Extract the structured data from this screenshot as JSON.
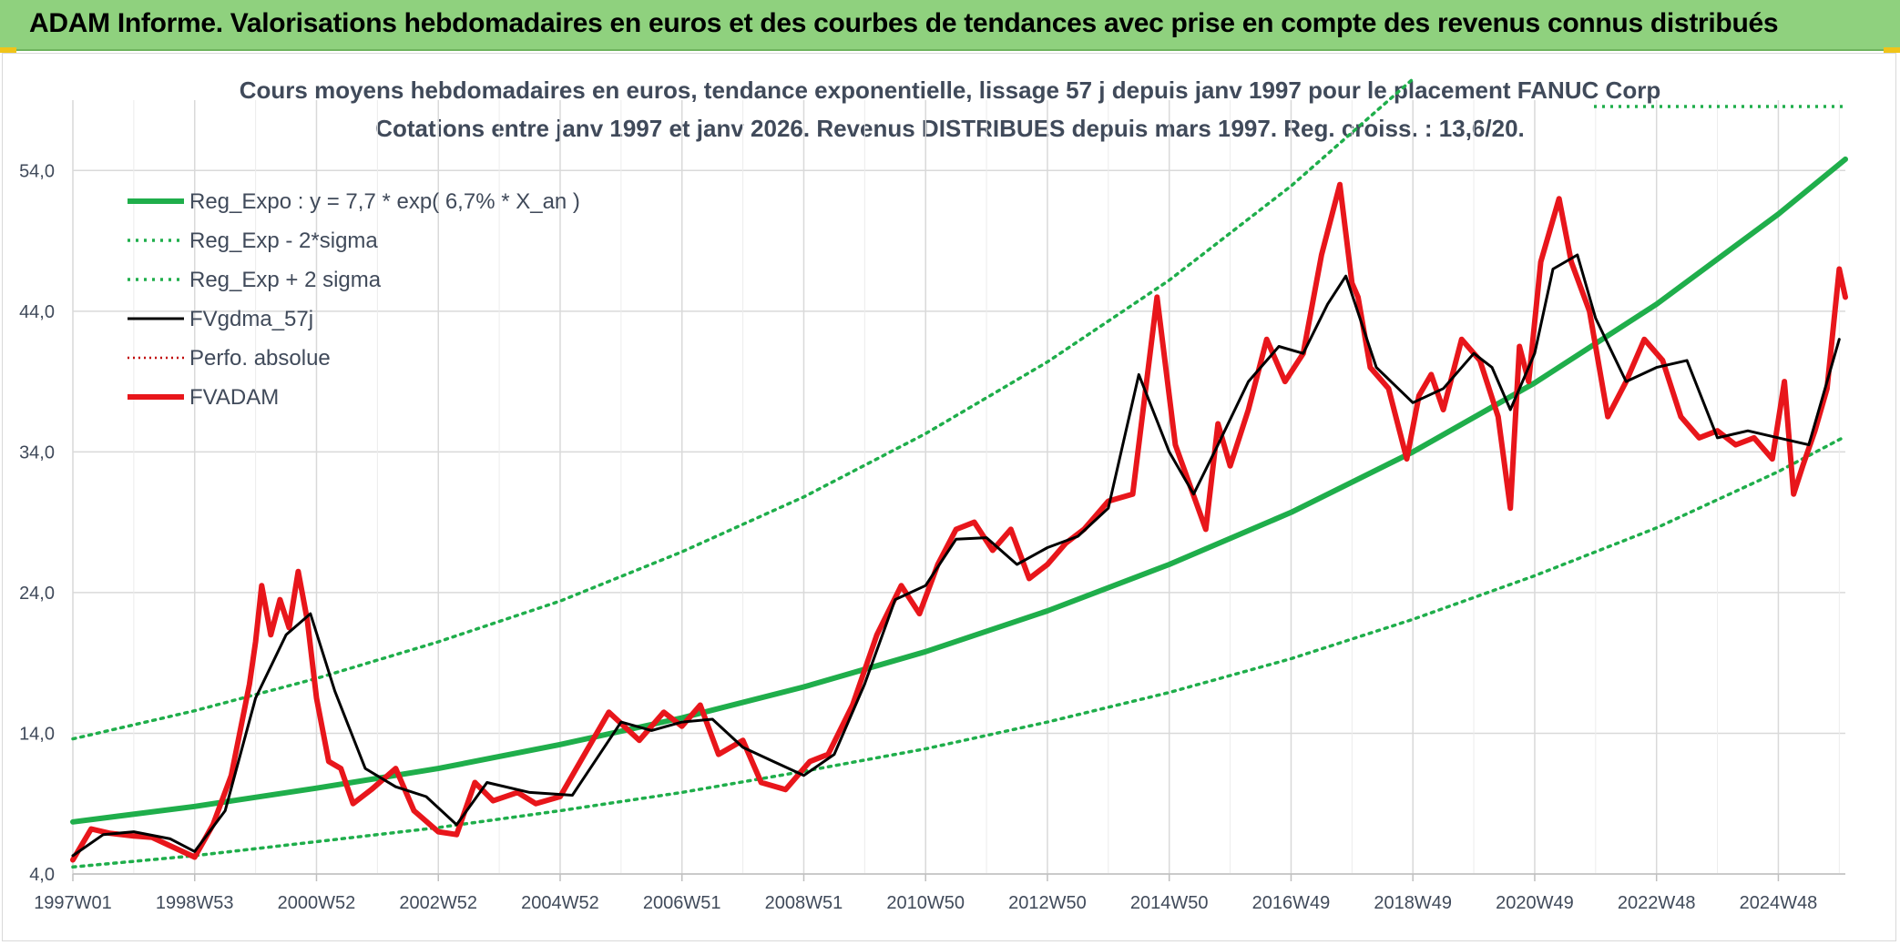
{
  "banner": {
    "title": "ADAM Informe. Valorisations hebdomadaires en euros et des courbes de tendances avec prise en compte des revenus connus distribués"
  },
  "colors": {
    "banner_bg": "#8fd17e",
    "reg_expo": "#1fae4b",
    "fvgdma": "#000000",
    "fvadam": "#e8161b",
    "perfo": "#c00000",
    "grid": "#d9d9d9"
  },
  "chart_data": {
    "type": "line",
    "title": "Cours moyens hebdomadaires en euros, tendance exponentielle, lissage 57 j depuis janv 1997 pour le placement FANUC Corp",
    "subtitle": "Cotations entre janv 1997 et janv 2026. Revenus DISTRIBUES depuis mars 1997. Reg. croiss. : 13,6/20.",
    "xlabel": "",
    "ylabel": "",
    "ylim": [
      4.0,
      59.0
    ],
    "yticks": [
      "4,0",
      "14,0",
      "24,0",
      "34,0",
      "44,0",
      "54,0"
    ],
    "xlim": [
      1997.0,
      2026.1
    ],
    "xticks": [
      {
        "label": "1997W01",
        "x": 1997.0
      },
      {
        "label": "1998W53",
        "x": 1999.0
      },
      {
        "label": "2000W52",
        "x": 2001.0
      },
      {
        "label": "2002W52",
        "x": 2003.0
      },
      {
        "label": "2004W52",
        "x": 2005.0
      },
      {
        "label": "2006W51",
        "x": 2007.0
      },
      {
        "label": "2008W51",
        "x": 2009.0
      },
      {
        "label": "2010W50",
        "x": 2011.0
      },
      {
        "label": "2012W50",
        "x": 2013.0
      },
      {
        "label": "2014W50",
        "x": 2015.0
      },
      {
        "label": "2016W49",
        "x": 2017.0
      },
      {
        "label": "2018W49",
        "x": 2019.0
      },
      {
        "label": "2020W49",
        "x": 2021.0
      },
      {
        "label": "2022W48",
        "x": 2023.0
      },
      {
        "label": "2024W48",
        "x": 2025.0
      }
    ],
    "grid": true,
    "legend_position": "top-left",
    "series": [
      {
        "name": "Reg_Expo : y = 7,7 * exp( 6,7% *  X_an )",
        "style": "solid-thick",
        "color": "#1fae4b",
        "x": [
          1997,
          1999,
          2001,
          2003,
          2005,
          2007,
          2009,
          2011,
          2013,
          2015,
          2017,
          2019,
          2021,
          2023,
          2025,
          2026.1
        ],
        "y": [
          7.7,
          8.8,
          10.1,
          11.5,
          13.2,
          15.1,
          17.3,
          19.8,
          22.7,
          26.0,
          29.7,
          34.0,
          38.9,
          44.5,
          50.9,
          54.8
        ]
      },
      {
        "name": "Reg_Exp - 2*sigma",
        "style": "dotted",
        "color": "#1fae4b",
        "x": [
          1997,
          1999,
          2001,
          2003,
          2005,
          2007,
          2009,
          2011,
          2013,
          2015,
          2017,
          2019,
          2021,
          2023,
          2025,
          2026.1
        ],
        "y": [
          4.5,
          5.3,
          6.3,
          7.3,
          8.5,
          9.8,
          11.3,
          12.9,
          14.8,
          16.9,
          19.3,
          22.1,
          25.2,
          28.6,
          32.6,
          35.1
        ]
      },
      {
        "name": "Reg_Exp + 2 sigma",
        "style": "dotted",
        "color": "#1fae4b",
        "x": [
          1997,
          1999,
          2001,
          2003,
          2005,
          2007,
          2009,
          2011,
          2013,
          2015,
          2017,
          2019
        ],
        "y": [
          13.6,
          15.6,
          17.9,
          20.5,
          23.4,
          26.9,
          30.8,
          35.3,
          40.4,
          46.2,
          52.9,
          60.5
        ]
      },
      {
        "name": "FVgdma_57j",
        "style": "solid",
        "color": "#000000",
        "x": [
          1997.0,
          1997.5,
          1998.0,
          1998.6,
          1999.0,
          1999.5,
          2000.0,
          2000.5,
          2000.9,
          2001.3,
          2001.8,
          2002.3,
          2002.8,
          2003.3,
          2003.8,
          2004.5,
          2005.2,
          2006.0,
          2006.5,
          2007.0,
          2007.5,
          2008.0,
          2008.5,
          2009.0,
          2009.5,
          2010.0,
          2010.5,
          2011.0,
          2011.5,
          2012.0,
          2012.5,
          2013.0,
          2013.5,
          2014.0,
          2014.5,
          2015.0,
          2015.4,
          2015.8,
          2016.3,
          2016.8,
          2017.2,
          2017.6,
          2017.9,
          2018.4,
          2019.0,
          2019.5,
          2020.0,
          2020.3,
          2020.6,
          2021.0,
          2021.3,
          2021.7,
          2022.0,
          2022.5,
          2023.0,
          2023.5,
          2024.0,
          2024.5,
          2025.0,
          2025.5,
          2026.0
        ],
        "y": [
          5.3,
          6.8,
          7.0,
          6.5,
          5.6,
          8.5,
          16.5,
          21.0,
          22.5,
          17.0,
          11.5,
          10.2,
          9.5,
          7.5,
          10.5,
          9.8,
          9.6,
          14.8,
          14.2,
          14.8,
          15.0,
          13.0,
          12.0,
          11.0,
          12.5,
          17.5,
          23.5,
          24.5,
          27.8,
          27.9,
          26.0,
          27.2,
          28.0,
          30.0,
          39.5,
          34.0,
          31.0,
          34.5,
          39.0,
          41.5,
          41.0,
          44.5,
          46.5,
          40.0,
          37.5,
          38.5,
          41.0,
          40.0,
          37.0,
          41.0,
          47.0,
          48.0,
          43.5,
          39.0,
          40.0,
          40.5,
          35.0,
          35.5,
          35.0,
          34.5,
          42.0
        ]
      },
      {
        "name": "Perfo. absolue",
        "style": "dotted-thin",
        "color": "#c00000",
        "x": [],
        "y": []
      },
      {
        "name": "FVADAM",
        "style": "solid-thick",
        "color": "#e8161b",
        "x": [
          1997.0,
          1997.3,
          1997.6,
          1998.0,
          1998.3,
          1998.6,
          1999.0,
          1999.3,
          1999.6,
          1999.9,
          2000.0,
          2000.1,
          2000.25,
          2000.4,
          2000.55,
          2000.7,
          2000.85,
          2001.0,
          2001.2,
          2001.4,
          2001.6,
          2001.9,
          2002.3,
          2002.6,
          2003.0,
          2003.3,
          2003.6,
          2003.9,
          2004.3,
          2004.6,
          2005.0,
          2005.4,
          2005.8,
          2006.3,
          2006.7,
          2007.0,
          2007.3,
          2007.6,
          2008.0,
          2008.3,
          2008.7,
          2009.1,
          2009.4,
          2009.8,
          2010.2,
          2010.6,
          2010.9,
          2011.2,
          2011.5,
          2011.8,
          2012.1,
          2012.4,
          2012.7,
          2013.0,
          2013.3,
          2013.6,
          2014.0,
          2014.4,
          2014.8,
          2015.1,
          2015.35,
          2015.6,
          2015.8,
          2016.0,
          2016.3,
          2016.6,
          2016.9,
          2017.2,
          2017.5,
          2017.8,
          2018.0,
          2018.1,
          2018.3,
          2018.6,
          2018.9,
          2019.1,
          2019.3,
          2019.5,
          2019.8,
          2020.1,
          2020.4,
          2020.6,
          2020.75,
          2020.9,
          2021.1,
          2021.4,
          2021.6,
          2021.9,
          2022.2,
          2022.5,
          2022.8,
          2023.1,
          2023.4,
          2023.7,
          2024.0,
          2024.3,
          2024.6,
          2024.9,
          2025.1,
          2025.25,
          2025.4,
          2025.6,
          2025.8,
          2026.0,
          2026.1
        ],
        "y": [
          5.0,
          7.2,
          6.9,
          6.7,
          6.6,
          6.0,
          5.2,
          7.5,
          11.0,
          17.5,
          20.5,
          24.5,
          21.0,
          23.5,
          21.5,
          25.5,
          22.0,
          16.5,
          12.0,
          11.5,
          9.0,
          10.0,
          11.5,
          8.5,
          7.0,
          6.8,
          10.5,
          9.2,
          9.8,
          9.0,
          9.5,
          12.5,
          15.5,
          13.5,
          15.5,
          14.5,
          16.0,
          12.5,
          13.5,
          10.5,
          10.0,
          12.0,
          12.5,
          16.0,
          21.0,
          24.5,
          22.5,
          26.0,
          28.5,
          29.0,
          27.0,
          28.5,
          25.0,
          26.0,
          27.5,
          28.5,
          30.5,
          31.0,
          45.0,
          34.5,
          31.5,
          28.5,
          36.0,
          33.0,
          37.0,
          42.0,
          39.0,
          41.0,
          48.0,
          53.0,
          46.0,
          45.0,
          40.0,
          38.5,
          33.5,
          38.0,
          39.5,
          37.0,
          42.0,
          40.5,
          36.5,
          30.0,
          41.5,
          39.0,
          47.5,
          52.0,
          47.5,
          44.0,
          36.5,
          39.0,
          42.0,
          40.5,
          36.5,
          35.0,
          35.5,
          34.5,
          35.0,
          33.5,
          39.0,
          31.0,
          33.0,
          35.5,
          38.5,
          47.0,
          45.0
        ]
      }
    ]
  }
}
